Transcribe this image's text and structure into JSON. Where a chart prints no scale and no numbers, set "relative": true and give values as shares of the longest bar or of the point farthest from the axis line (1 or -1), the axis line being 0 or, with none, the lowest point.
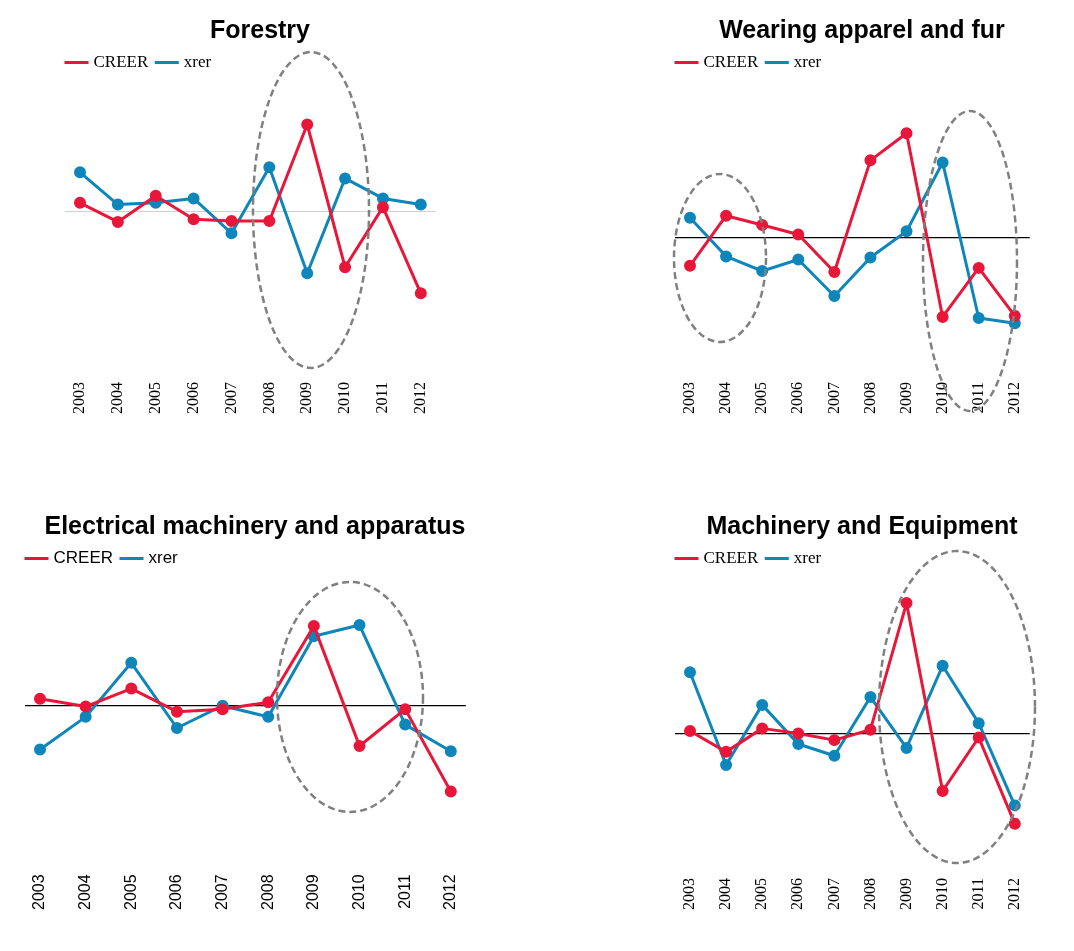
{
  "chart_data": [
    {
      "type": "line",
      "title": "Forestry",
      "relative": true,
      "legend": "top left",
      "marker": "circle",
      "line_style": "solid",
      "grid": false,
      "categories": [
        "2003",
        "2004",
        "2005",
        "2006",
        "2007",
        "2008",
        "2009",
        "2010",
        "2011",
        "2012"
      ],
      "series": [
        {
          "name": "CREER",
          "color": "#e8173a",
          "values": [
            0.1,
            -0.12,
            0.18,
            -0.09,
            -0.11,
            -0.11,
            1,
            -0.64,
            0.05,
            -0.94
          ]
        },
        {
          "name": "xrer",
          "color": "#0e86b9",
          "values": [
            0.45,
            0.08,
            0.1,
            0.15,
            -0.25,
            0.51,
            -0.71,
            0.38,
            0.15,
            0.08
          ]
        }
      ],
      "ref_lines": [
        {
          "axis": "y",
          "value": 0,
          "color": "#d0d0d0"
        }
      ]
    },
    {
      "type": "line",
      "title": "Wearing apparel and fur",
      "relative": true,
      "legend": "top left",
      "marker": "circle",
      "line_style": "solid",
      "grid": false,
      "categories": [
        "2003",
        "2004",
        "2005",
        "2006",
        "2007",
        "2008",
        "2009",
        "2010",
        "2011",
        "2012"
      ],
      "series": [
        {
          "name": "CREER",
          "color": "#e8173a",
          "values": [
            -0.27,
            0.21,
            0.12,
            0.03,
            -0.33,
            0.74,
            1,
            -0.76,
            -0.29,
            -0.75
          ]
        },
        {
          "name": "xrer",
          "color": "#0e86b9",
          "values": [
            0.19,
            -0.18,
            -0.32,
            -0.21,
            -0.56,
            -0.19,
            0.06,
            0.72,
            -0.77,
            -0.82
          ]
        }
      ],
      "ref_lines": [
        {
          "axis": "y",
          "value": 0,
          "color": "#000000"
        }
      ]
    },
    {
      "type": "line",
      "title": "Electrical machinery and apparatus",
      "relative": true,
      "legend": "top left",
      "marker": "circle",
      "line_style": "solid",
      "grid": false,
      "categories": [
        "2003",
        "2004",
        "2005",
        "2006",
        "2007",
        "2008",
        "2009",
        "2010",
        "2011",
        "2012"
      ],
      "series": [
        {
          "name": "CREER",
          "color": "#e8173a",
          "values": [
            0.08,
            -0.01,
            0.2,
            -0.07,
            -0.04,
            0.04,
            0.93,
            -0.47,
            -0.04,
            -1
          ]
        },
        {
          "name": "xrer",
          "color": "#0e86b9",
          "values": [
            -0.51,
            -0.13,
            0.5,
            -0.26,
            0,
            -0.13,
            0.81,
            0.94,
            -0.22,
            -0.53
          ]
        }
      ],
      "ref_lines": [
        {
          "axis": "y",
          "value": 0,
          "color": "#000000"
        }
      ]
    },
    {
      "type": "line",
      "title": "Machinery and Equipment",
      "relative": true,
      "legend": "top left",
      "marker": "circle",
      "line_style": "solid",
      "grid": false,
      "categories": [
        "2003",
        "2004",
        "2005",
        "2006",
        "2007",
        "2008",
        "2009",
        "2010",
        "2011",
        "2012"
      ],
      "series": [
        {
          "name": "CREER",
          "color": "#e8173a",
          "values": [
            0.02,
            -0.14,
            0.04,
            0,
            -0.05,
            0.03,
            1,
            -0.44,
            -0.03,
            -0.69
          ]
        },
        {
          "name": "xrer",
          "color": "#0e86b9",
          "values": [
            0.47,
            -0.24,
            0.22,
            -0.08,
            -0.17,
            0.28,
            -0.11,
            0.52,
            0.08,
            -0.55
          ]
        }
      ],
      "ref_lines": [
        {
          "axis": "y",
          "value": 0,
          "color": "#000000"
        }
      ]
    }
  ]
}
